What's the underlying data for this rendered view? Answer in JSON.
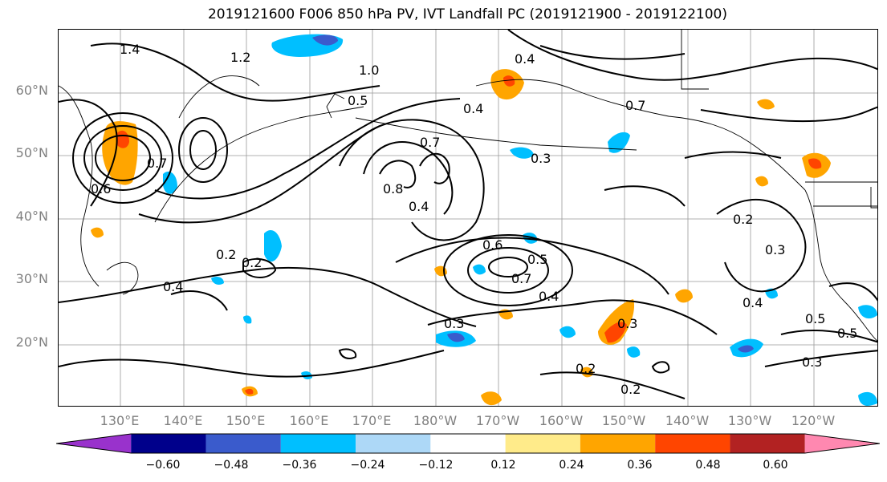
{
  "title": "2019121600 F006 850 hPa PV, IVT Landfall PC (2019121900 - 2019122100)",
  "lat_labels": [
    "60°N",
    "50°N",
    "40°N",
    "30°N",
    "20°N"
  ],
  "lon_labels": [
    "130°E",
    "140°E",
    "150°E",
    "160°E",
    "170°E",
    "180°W",
    "170°W",
    "160°W",
    "150°W",
    "140°W",
    "130°W",
    "120°W"
  ],
  "contour_labels": [
    "1.4",
    "1.2",
    "1.0",
    "0.5",
    "0.4",
    "0.4",
    "0.7",
    "0.6",
    "0.4",
    "0.7",
    "0.3",
    "0.8",
    "0.6",
    "0.5",
    "0.7",
    "0.4",
    "0.3",
    "0.3",
    "0.2",
    "0.2",
    "0.2",
    "0.2",
    "0.2",
    "0.4",
    "0.5",
    "0.5",
    "0.3",
    "0.3",
    "0.4",
    "0.7"
  ],
  "colorbar": {
    "colors": [
      "#9932cc",
      "#00008b",
      "#3a5bcc",
      "#00bfff",
      "#add8f7",
      "#ffffff",
      "#ffeb8a",
      "#ffa500",
      "#ff4500",
      "#b22222",
      "#ff88b0"
    ],
    "ticks": [
      "−0.60",
      "−0.48",
      "−0.36",
      "−0.24",
      "−0.12",
      "0.12",
      "0.24",
      "0.36",
      "0.48",
      "0.60"
    ]
  }
}
